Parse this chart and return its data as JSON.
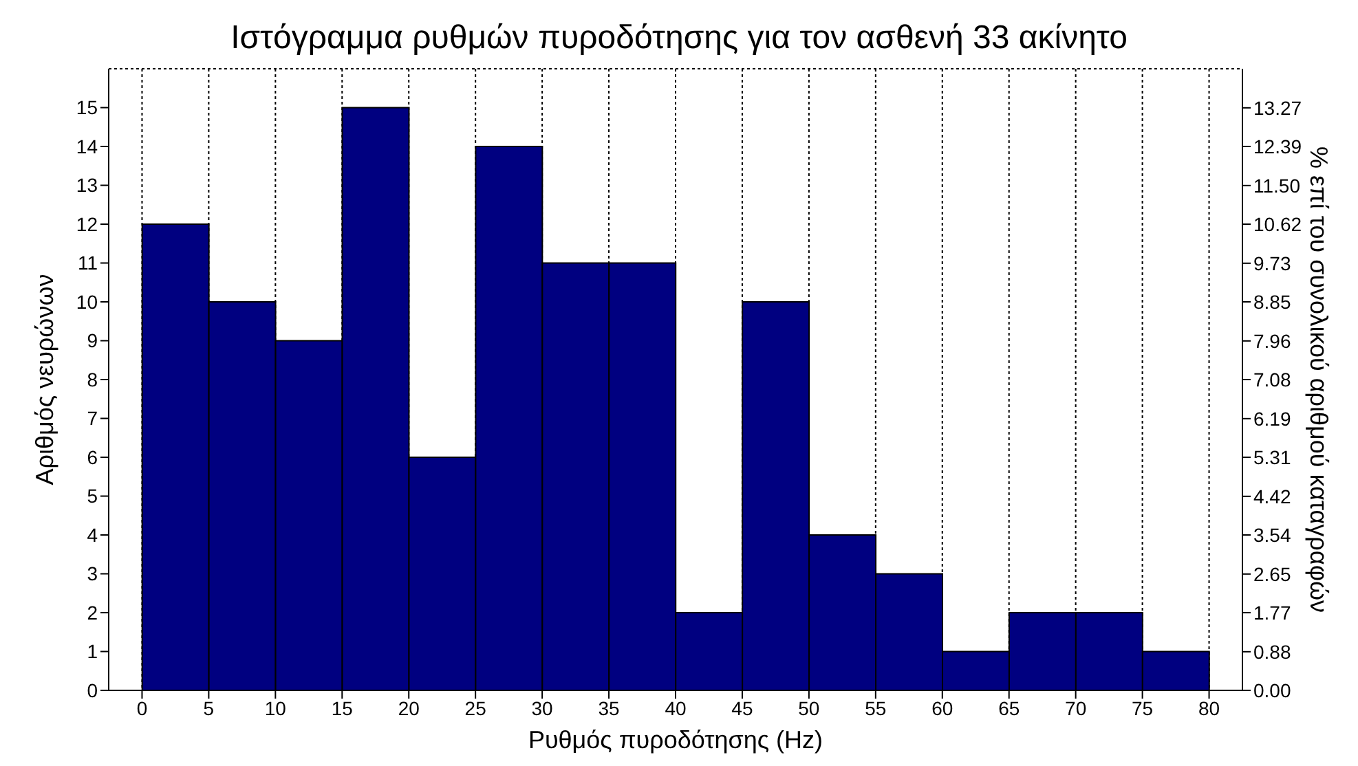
{
  "chart_data": {
    "type": "histogram",
    "title": "Ιστόγραμμα ρυθμών πυροδότησης για τον ασθενή 33 ακίνητο",
    "xlabel": "Ρυθμός πυροδότησης (Hz)",
    "ylabel": "Αριθμός νευρώνων",
    "y2label": "% επί του συνολικού αριθμού καταγραφών",
    "bins": [
      0,
      5,
      10,
      15,
      20,
      25,
      30,
      35,
      40,
      45,
      50,
      55,
      60,
      65,
      70,
      75,
      80
    ],
    "values": [
      12,
      10,
      9,
      15,
      6,
      14,
      11,
      11,
      2,
      10,
      4,
      3,
      1,
      2,
      2,
      1
    ],
    "color": "#000080",
    "xlim": [
      -2.5,
      82.5
    ],
    "xticks": [
      0,
      5,
      10,
      15,
      20,
      25,
      30,
      35,
      40,
      45,
      50,
      55,
      60,
      65,
      70,
      75,
      80
    ],
    "ylim": [
      0,
      16
    ],
    "yticks": [
      0,
      1,
      2,
      3,
      4,
      5,
      6,
      7,
      8,
      9,
      10,
      11,
      12,
      13,
      14,
      15
    ],
    "y2lim": [
      0,
      14.16
    ],
    "y2ticks": [
      {
        "value": 0,
        "label": "0.00"
      },
      0.88,
      1.77,
      2.65,
      3.54,
      4.42,
      5.31,
      6.19,
      7.08,
      7.96,
      8.85,
      9.73,
      10.62,
      {
        "value": 11.5,
        "label": "11.50"
      },
      12.39,
      13.27
    ],
    "grid": true,
    "line_style": "dotted"
  }
}
